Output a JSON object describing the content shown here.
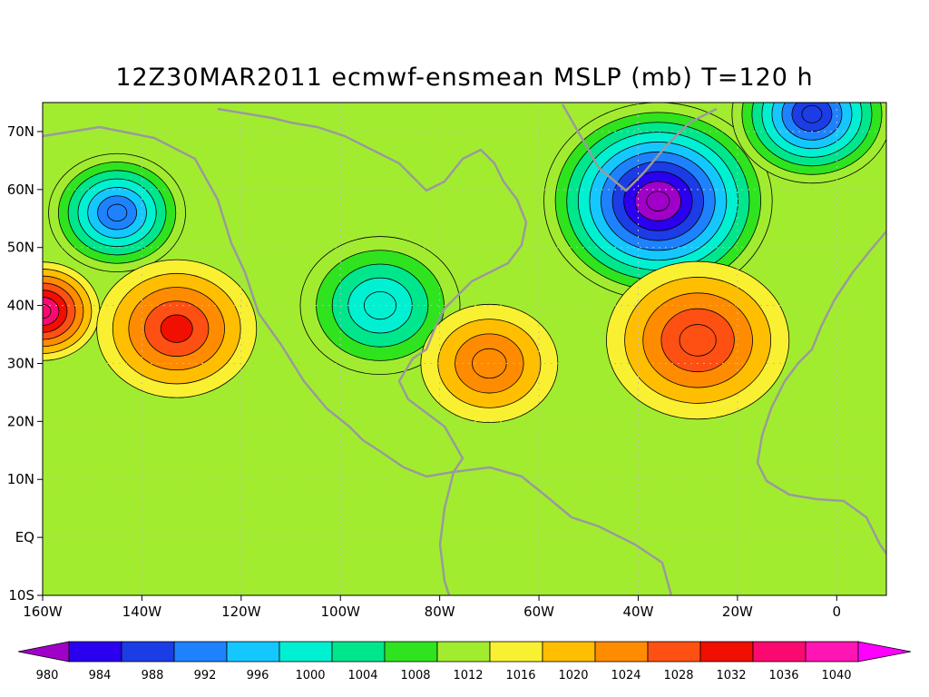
{
  "title": "12Z30MAR2011 ecmwf-ensmean MSLP (mb) T=120 h",
  "map": {
    "lon_range": [
      -160,
      10
    ],
    "lat_range": [
      -10,
      75
    ],
    "lon_ticks": [
      {
        "value": -160,
        "label": "160W"
      },
      {
        "value": -140,
        "label": "140W"
      },
      {
        "value": -120,
        "label": "120W"
      },
      {
        "value": -100,
        "label": "100W"
      },
      {
        "value": -80,
        "label": "80W"
      },
      {
        "value": -60,
        "label": "60W"
      },
      {
        "value": -40,
        "label": "40W"
      },
      {
        "value": -20,
        "label": "20W"
      },
      {
        "value": 0,
        "label": "0"
      }
    ],
    "lat_ticks": [
      {
        "value": 70,
        "label": "70N"
      },
      {
        "value": 60,
        "label": "60N"
      },
      {
        "value": 50,
        "label": "50N"
      },
      {
        "value": 40,
        "label": "40N"
      },
      {
        "value": 30,
        "label": "30N"
      },
      {
        "value": 20,
        "label": "20N"
      },
      {
        "value": 10,
        "label": "10N"
      },
      {
        "value": 0,
        "label": "EQ"
      },
      {
        "value": -10,
        "label": "10S"
      }
    ],
    "pressure_systems": [
      {
        "lon": -145,
        "lat": 56,
        "center": 990,
        "radius_deg": 12,
        "type": "low"
      },
      {
        "lon": -92,
        "lat": 40,
        "center": 997,
        "radius_deg": 14,
        "type": "low"
      },
      {
        "lon": -36,
        "lat": 58,
        "center": 979,
        "radius_deg": 20,
        "type": "low"
      },
      {
        "lon": -5,
        "lat": 73,
        "center": 986,
        "radius_deg": 14,
        "type": "low"
      },
      {
        "lon": -160,
        "lat": 39,
        "center": 1034,
        "radius_deg": 10,
        "type": "high"
      },
      {
        "lon": -133,
        "lat": 36,
        "center": 1028,
        "radius_deg": 14,
        "type": "high"
      },
      {
        "lon": -70,
        "lat": 30,
        "center": 1023,
        "radius_deg": 12,
        "type": "high"
      },
      {
        "lon": -28,
        "lat": 34,
        "center": 1027,
        "radius_deg": 16,
        "type": "high"
      }
    ]
  },
  "colorbar": {
    "levels": [
      980,
      984,
      988,
      992,
      996,
      1000,
      1004,
      1008,
      1012,
      1016,
      1020,
      1024,
      1028,
      1032,
      1036,
      1040
    ],
    "colors": [
      "#a000c8",
      "#2a00ee",
      "#1c3ce6",
      "#1e82ff",
      "#14c8ff",
      "#00f0d2",
      "#00e68c",
      "#2fe41e",
      "#a2ec30",
      "#faf032",
      "#ffbe00",
      "#ff8c00",
      "#ff5014",
      "#f00f00",
      "#fa0a70",
      "#ff14b4",
      "#ff00ff"
    ]
  }
}
